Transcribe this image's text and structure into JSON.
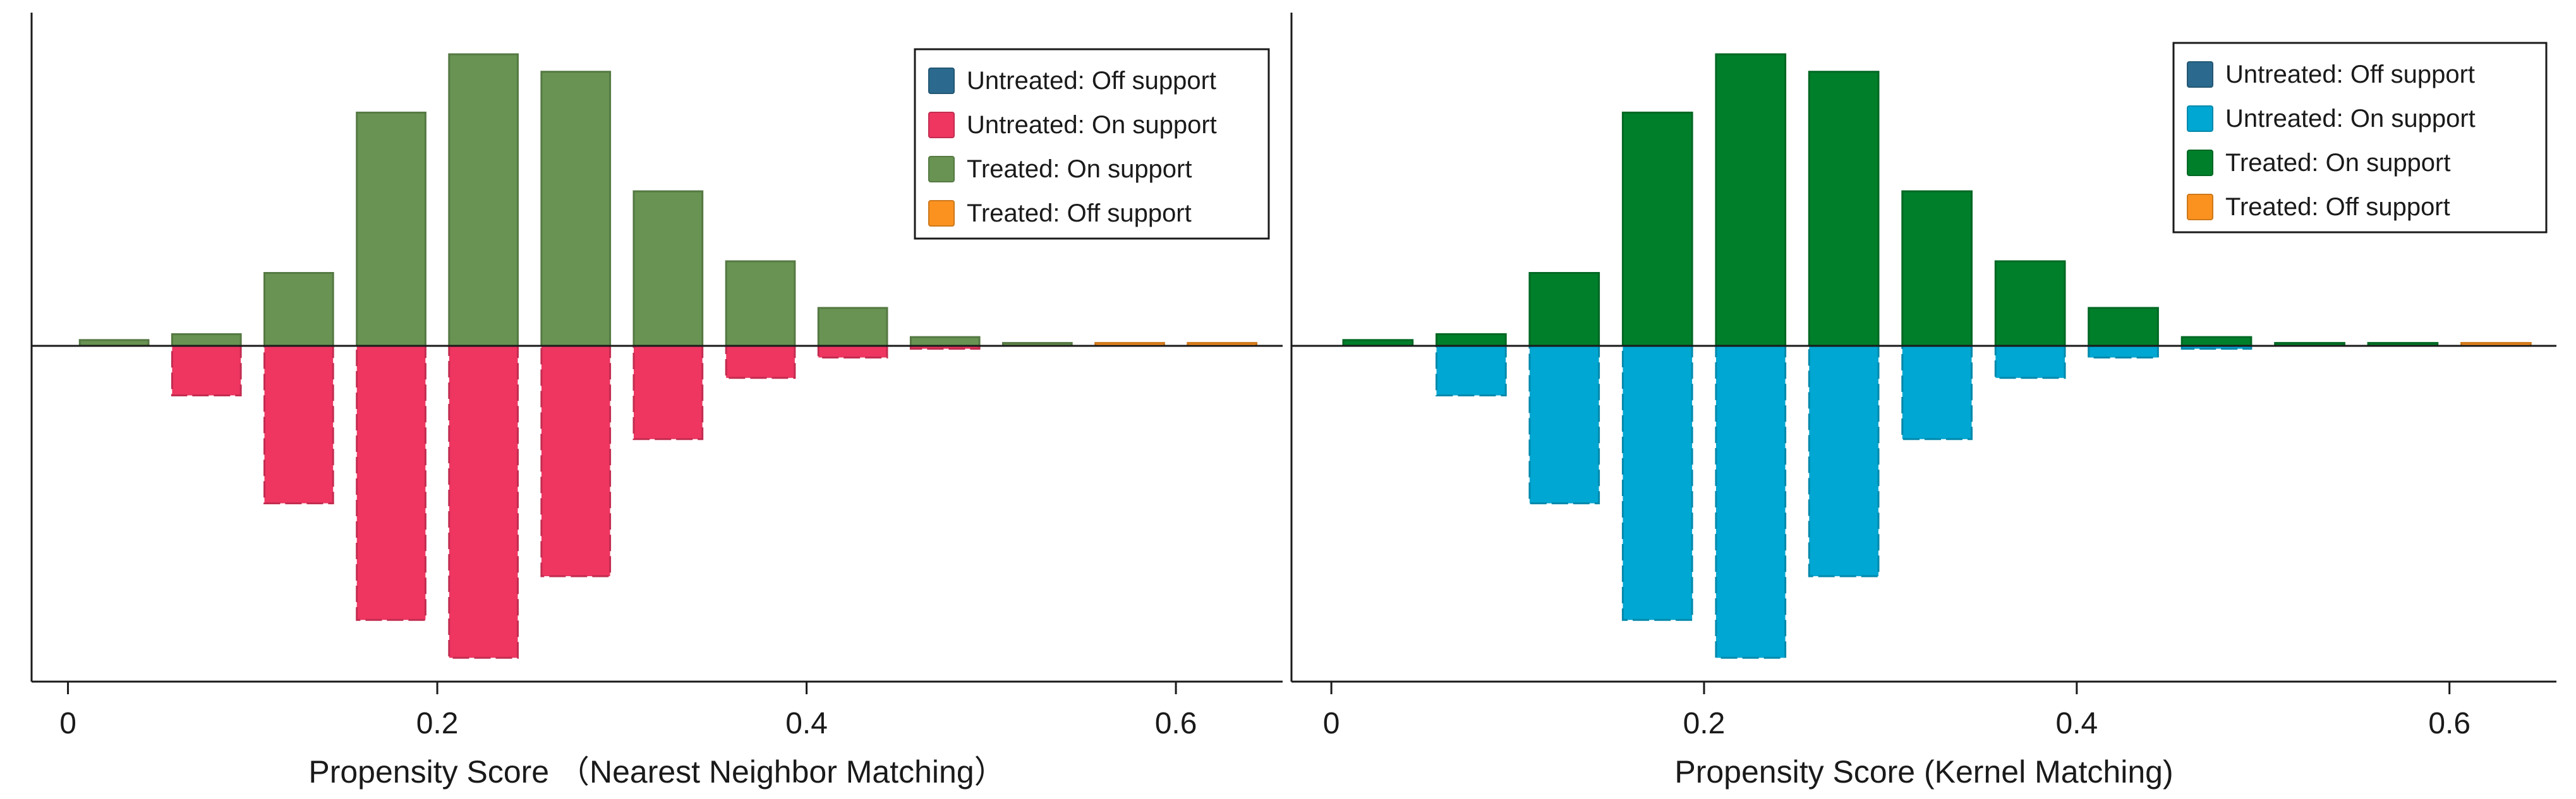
{
  "chart_data": [
    {
      "type": "bar",
      "title": "",
      "xlabel": "Propensity Score （Nearest Neighbor Matching）",
      "ylabel": "",
      "xlim": [
        -0.0197,
        0.6578
      ],
      "ylim": [
        -1.16,
        1.0
      ],
      "xticks": [
        0,
        0.2,
        0.4,
        0.6
      ],
      "xtick_labels": [
        "0",
        "0.2",
        "0.4",
        "0.6"
      ],
      "bar_width": 0.04,
      "bin_centers": [
        0.025,
        0.075,
        0.125,
        0.175,
        0.225,
        0.275,
        0.325,
        0.375,
        0.425,
        0.475,
        0.525,
        0.575,
        0.625
      ],
      "legend": {
        "position": "top-right",
        "entries": [
          "Untreated: Off support",
          "Untreated: On support",
          "Treated: On support",
          "Treated: Off support"
        ]
      },
      "colors": {
        "untreated_off": "#2b6a8e",
        "untreated_on": "#ee3661",
        "treated_on": "#689352",
        "treated_off": "#fb9220"
      },
      "series": [
        {
          "name": "Treated: On support",
          "key": "treated_on",
          "direction": "up",
          "values": [
            0.02,
            0.04,
            0.25,
            0.8,
            1.0,
            0.94,
            0.53,
            0.29,
            0.13,
            0.03,
            0.01,
            0.0,
            0.0
          ]
        },
        {
          "name": "Treated: Off support",
          "key": "treated_off",
          "direction": "up",
          "values": [
            0,
            0,
            0,
            0,
            0,
            0,
            0,
            0,
            0,
            0,
            0,
            0.01,
            0.01
          ]
        },
        {
          "name": "Untreated: On support",
          "key": "untreated_on",
          "direction": "down",
          "values": [
            0.0,
            0.17,
            0.54,
            0.94,
            1.07,
            0.79,
            0.32,
            0.11,
            0.04,
            0.01,
            0.0,
            0.0,
            0.0
          ]
        },
        {
          "name": "Untreated: Off support",
          "key": "untreated_off",
          "direction": "down",
          "values": [
            0,
            0,
            0,
            0,
            0,
            0,
            0,
            0,
            0,
            0,
            0,
            0,
            0
          ]
        }
      ]
    },
    {
      "type": "bar",
      "title": "",
      "xlabel": "Propensity Score (Kernel Matching)",
      "ylabel": "",
      "xlim": [
        -0.0214,
        0.6574
      ],
      "ylim": [
        -1.16,
        1.0
      ],
      "xticks": [
        0,
        0.2,
        0.4,
        0.6
      ],
      "xtick_labels": [
        "0",
        "0.2",
        "0.4",
        "0.6"
      ],
      "bar_width": 0.04,
      "bin_centers": [
        0.025,
        0.075,
        0.125,
        0.175,
        0.225,
        0.275,
        0.325,
        0.375,
        0.425,
        0.475,
        0.525,
        0.575,
        0.625
      ],
      "legend": {
        "position": "top-right",
        "entries": [
          "Untreated: Off support",
          "Untreated: On support",
          "Treated: On support",
          "Treated: Off support"
        ]
      },
      "colors": {
        "untreated_off": "#2b6a8e",
        "untreated_on": "#00a7d2",
        "treated_on": "#007f2b",
        "treated_off": "#fb9220"
      },
      "series": [
        {
          "name": "Treated: On support",
          "key": "treated_on",
          "direction": "up",
          "values": [
            0.02,
            0.04,
            0.25,
            0.8,
            1.0,
            0.94,
            0.53,
            0.29,
            0.13,
            0.03,
            0.01,
            0.01,
            0.0
          ]
        },
        {
          "name": "Treated: Off support",
          "key": "treated_off",
          "direction": "up",
          "values": [
            0,
            0,
            0,
            0,
            0,
            0,
            0,
            0,
            0,
            0,
            0,
            0,
            0.01
          ]
        },
        {
          "name": "Untreated: On support",
          "key": "untreated_on",
          "direction": "down",
          "values": [
            0.0,
            0.17,
            0.54,
            0.94,
            1.07,
            0.79,
            0.32,
            0.11,
            0.04,
            0.01,
            0.0,
            0.0,
            0.0
          ]
        },
        {
          "name": "Untreated: Off support",
          "key": "untreated_off",
          "direction": "down",
          "values": [
            0,
            0,
            0,
            0,
            0,
            0,
            0,
            0,
            0,
            0,
            0,
            0,
            0
          ]
        }
      ]
    }
  ]
}
